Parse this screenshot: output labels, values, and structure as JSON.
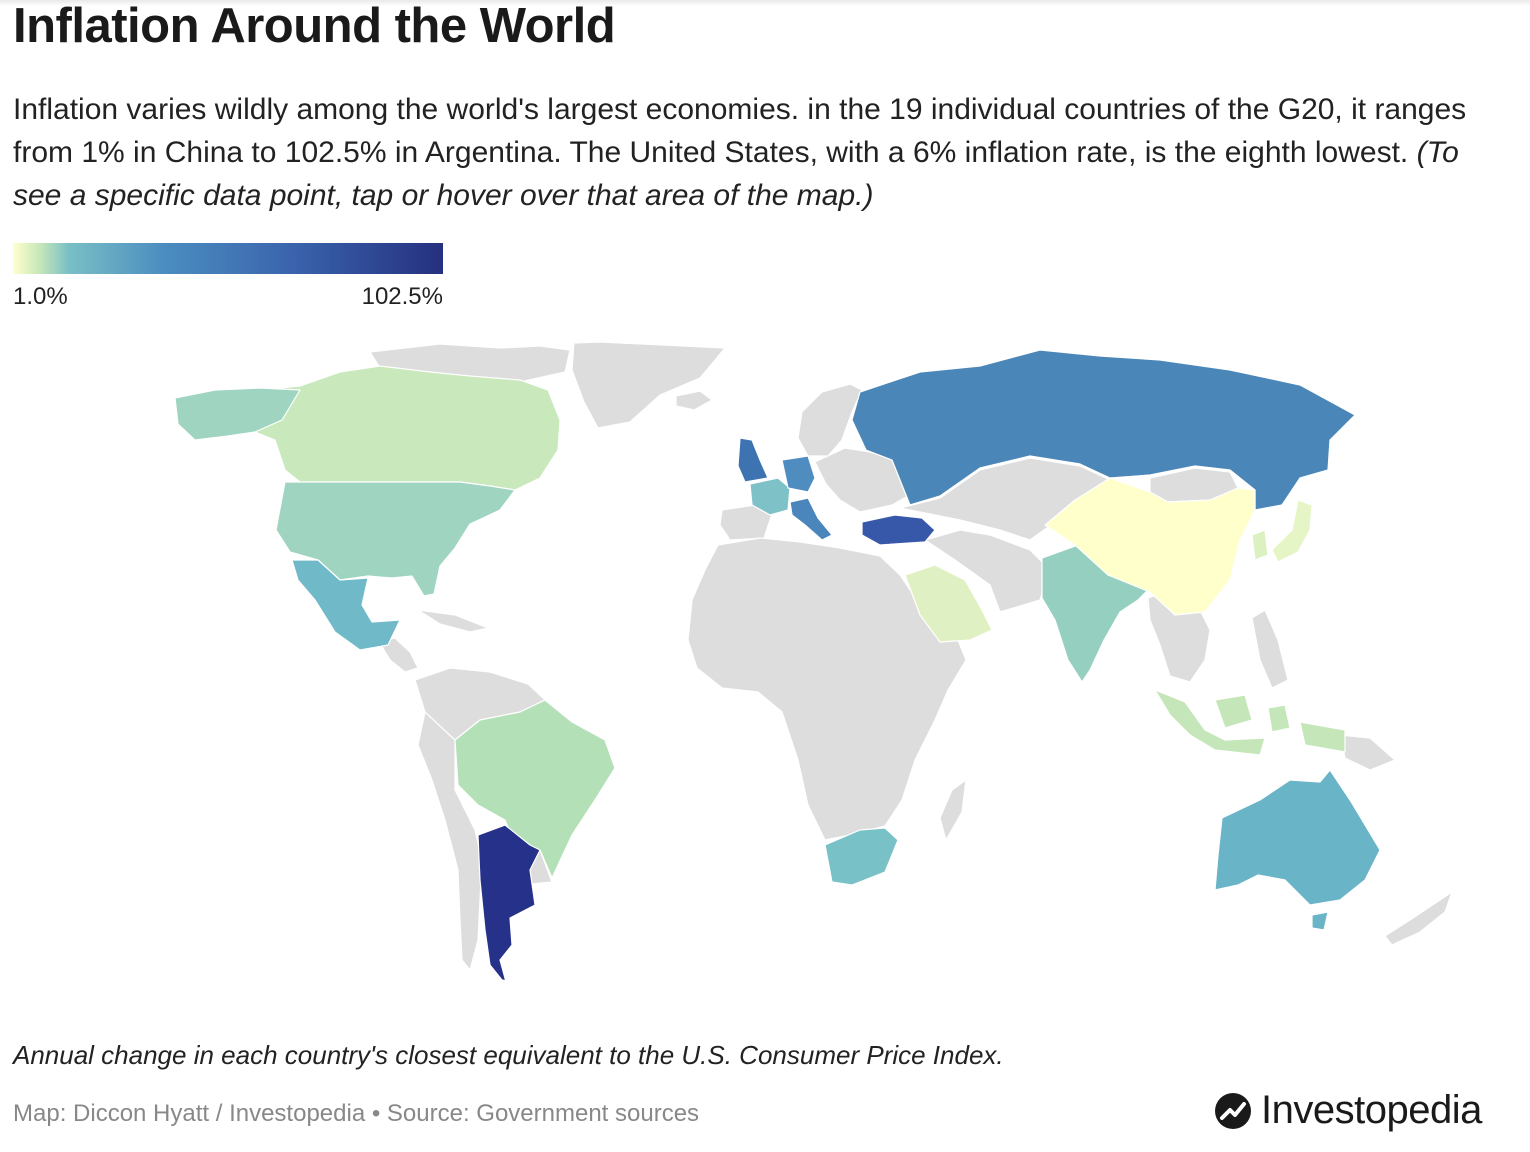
{
  "header": {
    "title": "Inflation Around the World",
    "subtitle_main": "Inflation varies wildly among the world's largest economies. in the 19 individual countries of the G20, it ranges from 1% in China to 102.5% in Argentina. The United States, with a 6% inflation rate, is the eighth lowest.",
    "subtitle_note": "(To see a specific data point, tap or hover over that area of the map.)"
  },
  "legend": {
    "min_label": "1.0%",
    "max_label": "102.5%",
    "colors": [
      "#ffffcc",
      "#c9e8b9",
      "#79bfc6",
      "#4b8dc0",
      "#3a64ad",
      "#25307f"
    ]
  },
  "map": {
    "no_data_color": "#dddddd",
    "highlighted_countries": [
      {
        "name": "Argentina",
        "inflation_pct": 102.5,
        "color": "#26318a"
      },
      {
        "name": "Turkey",
        "color": "#3757a8"
      },
      {
        "name": "Russia",
        "color": "#4a87b8"
      },
      {
        "name": "United Kingdom",
        "color": "#3e73b2"
      },
      {
        "name": "Germany",
        "color": "#4f8cc0"
      },
      {
        "name": "Italy",
        "color": "#4a86bb"
      },
      {
        "name": "France",
        "color": "#7ec2c7"
      },
      {
        "name": "United States",
        "inflation_pct": 6,
        "color": "#9fd4c0"
      },
      {
        "name": "Canada",
        "color": "#c9e8bb"
      },
      {
        "name": "Mexico",
        "color": "#6fb9c8"
      },
      {
        "name": "Brazil",
        "color": "#b4e0b8"
      },
      {
        "name": "South Africa",
        "color": "#78c1c6"
      },
      {
        "name": "India",
        "color": "#94cfbf"
      },
      {
        "name": "China",
        "inflation_pct": 1,
        "color": "#ffffcc"
      },
      {
        "name": "Japan",
        "color": "#e5f5c5"
      },
      {
        "name": "South Korea",
        "color": "#dcf1c1"
      },
      {
        "name": "Indonesia",
        "color": "#c4e6b9"
      },
      {
        "name": "Saudi Arabia",
        "color": "#dff1c2"
      },
      {
        "name": "Australia",
        "color": "#69b4c7"
      }
    ]
  },
  "footer": {
    "caption": "Annual change in each country's closest equivalent to the U.S. Consumer Price Index.",
    "credit": "Map: Diccon Hyatt / Investopedia • Source: Government sources",
    "logo_text": "Investopedia"
  }
}
